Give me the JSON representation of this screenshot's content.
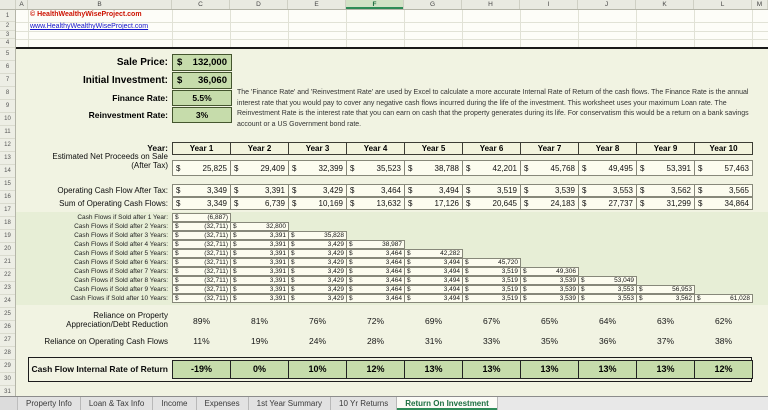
{
  "colors": {
    "accent_green": "#2e8b57",
    "input_cell_bg": "#c6dcab",
    "copyright_red": "#cc1100",
    "link_blue": "#1414cc",
    "content_bg": "#f1f3e2"
  },
  "column_headers": [
    "A",
    "B",
    "C",
    "D",
    "E",
    "F",
    "G",
    "H",
    "I",
    "J",
    "K",
    "L",
    "M"
  ],
  "selected_column": "F",
  "top": {
    "copyright": "© HealthWealthyWiseProject.com",
    "link": "www.HealthyWealthyWiseProject.com"
  },
  "inputs": [
    {
      "label": "Sale Price:",
      "currency": "$",
      "amount": "132,000"
    },
    {
      "label": "Initial Investment:",
      "currency": "$",
      "amount": "36,060"
    },
    {
      "label": "Finance Rate:",
      "value": "5.5%"
    },
    {
      "label": "Reinvestment Rate:",
      "value": "3%"
    }
  ],
  "note": "The 'Finance Rate' and 'Reinvestment Rate' are used by Excel to calculate a more accurate Internal Rate of Return of the cash flows.  The Finance Rate is the annual interest rate that you would pay to cover any negative cash flows incurred during the life of the investment.  This worksheet uses your maximum Loan rate.  The Reinvestment Rate is the interest rate that you can earn on cash that the property generates during its life.  For conservatism this would be a return on a bank savings account or a US Government bond rate.",
  "table": {
    "year_label": "Year:",
    "years": [
      "Year 1",
      "Year 2",
      "Year 3",
      "Year 4",
      "Year 5",
      "Year 6",
      "Year 7",
      "Year 8",
      "Year 9",
      "Year 10"
    ],
    "proceeds": {
      "label1": "Estimated Net Proceeds on Sale",
      "label2": "(After Tax)",
      "values": [
        "25,825",
        "29,409",
        "32,399",
        "35,523",
        "38,788",
        "42,201",
        "45,768",
        "49,495",
        "53,391",
        "57,463"
      ]
    },
    "op_cf": {
      "label": "Operating Cash Flow After Tax:",
      "values": [
        "3,349",
        "3,391",
        "3,429",
        "3,464",
        "3,494",
        "3,519",
        "3,539",
        "3,553",
        "3,562",
        "3,565"
      ]
    },
    "sum_cf": {
      "label": "Sum of Operating Cash Flows:",
      "values": [
        "3,349",
        "6,739",
        "10,169",
        "13,632",
        "17,126",
        "20,645",
        "24,183",
        "27,737",
        "31,299",
        "34,864"
      ]
    },
    "sold_rows": [
      {
        "label": "Cash Flows if Sold after 1 Year:",
        "values": [
          "(6,887)"
        ]
      },
      {
        "label": "Cash Flows if Sold after 2 Years:",
        "values": [
          "(32,711)",
          "32,800"
        ]
      },
      {
        "label": "Cash Flows if Sold after 3 Years:",
        "values": [
          "(32,711)",
          "3,391",
          "35,828"
        ]
      },
      {
        "label": "Cash Flows if Sold after 4 Years:",
        "values": [
          "(32,711)",
          "3,391",
          "3,429",
          "38,987"
        ]
      },
      {
        "label": "Cash Flows if Sold after 5 Years:",
        "values": [
          "(32,711)",
          "3,391",
          "3,429",
          "3,464",
          "42,282"
        ]
      },
      {
        "label": "Cash Flows if Sold after 6 Years:",
        "values": [
          "(32,711)",
          "3,391",
          "3,429",
          "3,464",
          "3,494",
          "45,720"
        ]
      },
      {
        "label": "Cash Flows if Sold after 7 Years:",
        "values": [
          "(32,711)",
          "3,391",
          "3,429",
          "3,464",
          "3,494",
          "3,519",
          "49,306"
        ]
      },
      {
        "label": "Cash Flows if Sold after 8 Years:",
        "values": [
          "(32,711)",
          "3,391",
          "3,429",
          "3,464",
          "3,494",
          "3,519",
          "3,539",
          "53,049"
        ]
      },
      {
        "label": "Cash Flows if Sold after 9 Years:",
        "values": [
          "(32,711)",
          "3,391",
          "3,429",
          "3,464",
          "3,494",
          "3,519",
          "3,539",
          "3,553",
          "56,953"
        ]
      },
      {
        "label": "Cash Flows if Sold after 10 Years:",
        "values": [
          "(32,711)",
          "3,391",
          "3,429",
          "3,464",
          "3,494",
          "3,519",
          "3,539",
          "3,553",
          "3,562",
          "61,028"
        ]
      }
    ],
    "reliance_appreciation": {
      "label1": "Reliance on Property",
      "label2": "Appreciation/Debt Reduction",
      "values": [
        "89%",
        "81%",
        "76%",
        "72%",
        "69%",
        "67%",
        "65%",
        "64%",
        "63%",
        "62%"
      ]
    },
    "reliance_op": {
      "label": "Reliance on Operating Cash Flows",
      "values": [
        "11%",
        "19%",
        "24%",
        "28%",
        "31%",
        "33%",
        "35%",
        "36%",
        "37%",
        "38%"
      ]
    },
    "irr": {
      "label": "Cash Flow Internal Rate of Return",
      "values": [
        "-19%",
        "0%",
        "10%",
        "12%",
        "13%",
        "13%",
        "13%",
        "13%",
        "13%",
        "12%"
      ]
    }
  },
  "tabs": [
    {
      "label": "Property Info",
      "active": false
    },
    {
      "label": "Loan & Tax Info",
      "active": false
    },
    {
      "label": "Income",
      "active": false
    },
    {
      "label": "Expenses",
      "active": false
    },
    {
      "label": "1st Year Summary",
      "active": false
    },
    {
      "label": "10 Yr Returns",
      "active": false
    },
    {
      "label": "Return On Investment",
      "active": true
    }
  ]
}
